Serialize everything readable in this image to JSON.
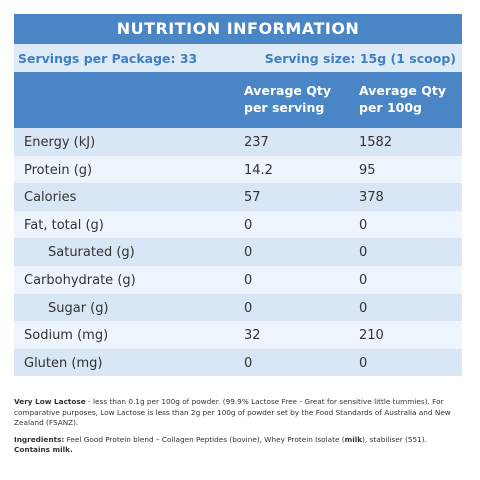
{
  "title": "NUTRITION INFORMATION",
  "servings_per_package": "Servings per Package: 33",
  "serving_size": "Serving size: 15g (1 scoop)",
  "columns": {
    "per_serving_line1": "Average Qty",
    "per_serving_line2": "per serving",
    "per_100g_line1": "Average Qty",
    "per_100g_line2": "per 100g"
  },
  "rows": [
    {
      "label": "Energy (kJ)",
      "per_serving": "237",
      "per_100g": "1582"
    },
    {
      "label": "Protein (g)",
      "per_serving": "14.2",
      "per_100g": "95"
    },
    {
      "label": "Calories",
      "per_serving": "57",
      "per_100g": "378"
    },
    {
      "label": "Fat, total (g)",
      "per_serving": "0",
      "per_100g": "0"
    },
    {
      "label": "Saturated (g)",
      "per_serving": "0",
      "per_100g": "0"
    },
    {
      "label": "Carbohydrate (g)",
      "per_serving": "0",
      "per_100g": "0"
    },
    {
      "label": "Sugar (g)",
      "per_serving": "0",
      "per_100g": "0"
    },
    {
      "label": "Sodium (mg)",
      "per_serving": "32",
      "per_100g": "210"
    },
    {
      "label": "Gluten (mg)",
      "per_serving": "0",
      "per_100g": "0"
    }
  ],
  "notes": {
    "lactose_bold": "Very Low Lactose",
    "lactose_text": " - less than 0.1g per 100g of powder. (99.9% Lactose Free - Great for sensitive little tummies). For comparative purposes, Low Lactose is less than 2g per 100g of powder set by the Food Standards of Australia and New Zealand (FSANZ).",
    "ingredients_label": "Ingredients:",
    "ingredients_text_1": " Feel Good Protein blend – Collagen Peptides (bovine), Whey Protein Isolate (",
    "ingredients_milk": "milk",
    "ingredients_text_2": "), stabiliser (551). ",
    "contains_milk": "Contains milk."
  },
  "colors": {
    "header_blue": "#4a86c6",
    "row_dark": "#d8e6f5",
    "row_light": "#eef4fb",
    "serving_text": "#3f7fc1"
  }
}
